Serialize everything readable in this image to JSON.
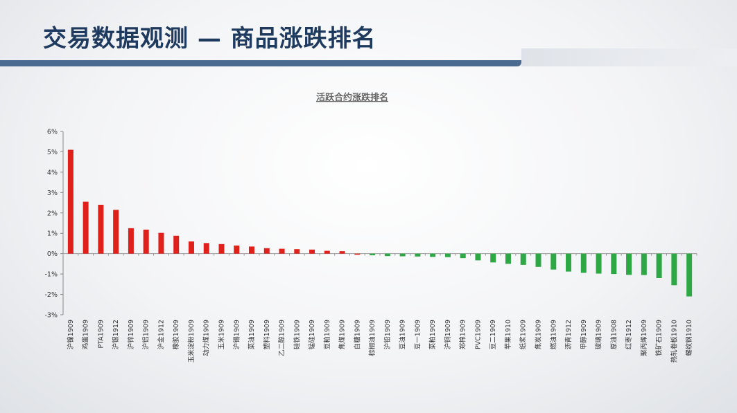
{
  "slide": {
    "title": "交易数据观测 — 商品涨跌排名"
  },
  "colors": {
    "title": "#1f3a5f",
    "accent_bar": "#4a6a8f",
    "up": "#e0201b",
    "down": "#2da844"
  },
  "chart_data": {
    "type": "bar",
    "title": "活跃合约涨跌排名",
    "xlabel": "",
    "ylabel": "",
    "ylim": [
      -3,
      6
    ],
    "ytick_labels": [
      "6%",
      "5%",
      "4%",
      "3%",
      "2%",
      "1%",
      "0%",
      "-1%",
      "-2%",
      "-3%"
    ],
    "grid": false,
    "categories": [
      "沪镍1909",
      "鸡蛋1909",
      "PTA1909",
      "沪银1912",
      "沪锌1909",
      "沪铝1909",
      "沪金1912",
      "橡胶1909",
      "玉米淀粉1909",
      "动力煤1909",
      "玉米1909",
      "沪锡1909",
      "菜油1909",
      "塑料1909",
      "乙二醇1909",
      "硅铁1909",
      "锰硅1909",
      "豆粕1909",
      "焦煤1909",
      "白糖1909",
      "棕榈油1909",
      "沪铅1909",
      "豆油1909",
      "豆一1909",
      "菜粕1909",
      "沪铜1909",
      "郑棉1909",
      "PVC1909",
      "豆二1909",
      "苹果1910",
      "纸浆1909",
      "焦炭1909",
      "燃油1909",
      "沥青1912",
      "甲醇1909",
      "玻璃1909",
      "原油1908",
      "红枣1912",
      "聚丙烯1909",
      "铁矿石1909",
      "热轧卷板1910",
      "螺纹钢1910"
    ],
    "values": [
      5.1,
      2.55,
      2.4,
      2.15,
      1.25,
      1.18,
      1.02,
      0.88,
      0.6,
      0.52,
      0.47,
      0.4,
      0.35,
      0.27,
      0.24,
      0.22,
      0.2,
      0.14,
      0.12,
      0.0,
      -0.08,
      -0.12,
      -0.13,
      -0.14,
      -0.16,
      -0.17,
      -0.22,
      -0.33,
      -0.43,
      -0.5,
      -0.55,
      -0.65,
      -0.78,
      -0.88,
      -0.94,
      -0.98,
      -1.0,
      -1.04,
      -1.05,
      -1.2,
      -1.55,
      -2.1
    ]
  }
}
